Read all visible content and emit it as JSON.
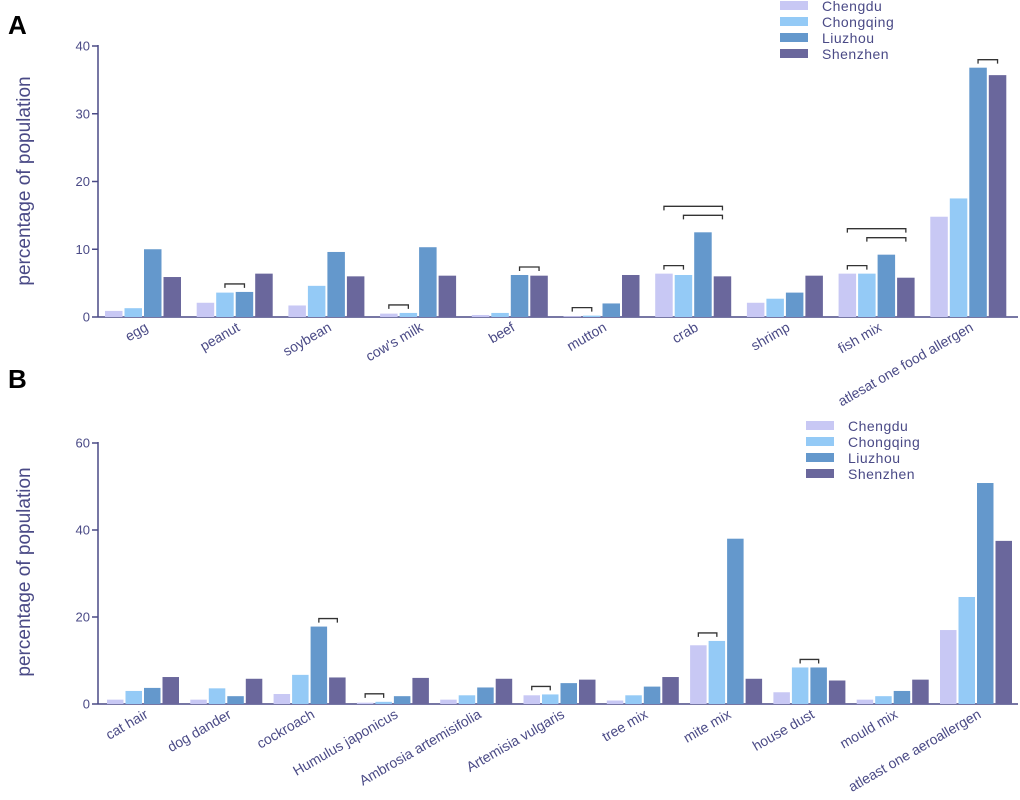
{
  "chart_data": [
    {
      "panel": "A",
      "type": "bar",
      "ylabel": "percentage of population",
      "ylim": [
        0,
        40
      ],
      "yticks": [
        0,
        10,
        20,
        30,
        40
      ],
      "legend_position": "top-right",
      "categories": [
        "egg",
        "peanut",
        "soybean",
        "cow's milk",
        "beef",
        "mutton",
        "crab",
        "shrimp",
        "fish mix",
        "atlesat one food allergen"
      ],
      "series": [
        {
          "name": "Chengdu",
          "color": "#c8c8f4",
          "values": [
            0.9,
            2.1,
            1.7,
            0.5,
            0.3,
            0.1,
            6.4,
            2.1,
            6.4,
            14.8
          ]
        },
        {
          "name": "Chongqing",
          "color": "#94caf6",
          "values": [
            1.3,
            3.6,
            4.6,
            0.6,
            0.6,
            0.2,
            6.2,
            2.7,
            6.4,
            17.5
          ]
        },
        {
          "name": "Liuzhou",
          "color": "#6498cc",
          "values": [
            10.0,
            3.7,
            9.6,
            10.3,
            6.2,
            2.0,
            12.5,
            3.6,
            9.2,
            36.8
          ]
        },
        {
          "name": "Shenzhen",
          "color": "#6a679c",
          "values": [
            5.9,
            6.4,
            6.0,
            6.1,
            6.1,
            6.2,
            6.0,
            6.1,
            5.8,
            35.7
          ]
        }
      ],
      "comparisons": [
        {
          "category": 1,
          "from": 1,
          "to": 2
        },
        {
          "category": 3,
          "from": 0,
          "to": 1
        },
        {
          "category": 4,
          "from": 2,
          "to": 3
        },
        {
          "category": 5,
          "from": 0,
          "to": 1
        },
        {
          "category": 6,
          "from": 0,
          "to": 1
        },
        {
          "category": 6,
          "from": 1,
          "to": 3
        },
        {
          "category": 6,
          "from": 0,
          "to": 3
        },
        {
          "category": 8,
          "from": 0,
          "to": 1
        },
        {
          "category": 8,
          "from": 1,
          "to": 3
        },
        {
          "category": 8,
          "from": 0,
          "to": 3
        },
        {
          "category": 9,
          "from": 2,
          "to": 3
        }
      ]
    },
    {
      "panel": "B",
      "type": "bar",
      "ylabel": "percentage of population",
      "ylim": [
        0,
        60
      ],
      "yticks": [
        0,
        20,
        40,
        60
      ],
      "legend_position": "top-right",
      "categories": [
        "cat hair",
        "dog dander",
        "cockroach",
        "Humulus japonicus",
        "Ambrosia artemisifolia",
        "Artemisia vulgaris",
        "tree mix",
        "mite mix",
        "house dust",
        "mould mix",
        "atleast one aeroallergen"
      ],
      "series": [
        {
          "name": "Chengdu",
          "color": "#c8c8f4",
          "values": [
            1.0,
            1.0,
            2.3,
            0.3,
            1.0,
            2.0,
            0.8,
            13.5,
            2.7,
            1.0,
            17.0
          ]
        },
        {
          "name": "Chongqing",
          "color": "#94caf6",
          "values": [
            3.0,
            3.6,
            6.7,
            0.5,
            2.0,
            2.2,
            2.0,
            14.5,
            8.4,
            1.8,
            24.6
          ]
        },
        {
          "name": "Liuzhou",
          "color": "#6498cc",
          "values": [
            3.7,
            1.8,
            17.8,
            1.8,
            3.8,
            4.8,
            4.0,
            38.0,
            8.4,
            3.0,
            50.8
          ]
        },
        {
          "name": "Shenzhen",
          "color": "#6a679c",
          "values": [
            6.2,
            5.8,
            6.1,
            6.0,
            5.8,
            5.6,
            6.2,
            5.8,
            5.4,
            5.6,
            37.5
          ]
        }
      ],
      "comparisons": [
        {
          "category": 2,
          "from": 2,
          "to": 3
        },
        {
          "category": 3,
          "from": 0,
          "to": 1
        },
        {
          "category": 5,
          "from": 0,
          "to": 1
        },
        {
          "category": 7,
          "from": 0,
          "to": 1
        },
        {
          "category": 8,
          "from": 1,
          "to": 2
        }
      ]
    }
  ]
}
